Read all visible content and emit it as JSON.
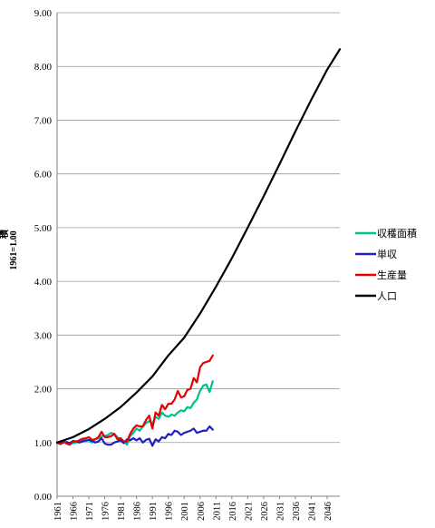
{
  "chart_data": {
    "type": "line",
    "ylabel": "1961=1.00",
    "ylabel_top_partial": "積",
    "ylim": [
      0,
      9
    ],
    "xlim": [
      1961,
      2050
    ],
    "y_ticks": [
      "0.00",
      "1.00",
      "2.00",
      "3.00",
      "4.00",
      "5.00",
      "6.00",
      "7.00",
      "8.00",
      "9.00"
    ],
    "x_ticks": [
      "1961",
      "1966",
      "1971",
      "1976",
      "1981",
      "1986",
      "1991",
      "1996",
      "2001",
      "2006",
      "2011",
      "2016",
      "2021",
      "2026",
      "2031",
      "2036",
      "2041",
      "2046"
    ],
    "grid": "horizontal",
    "legend_position": "right",
    "series": [
      {
        "name": "収穫面積",
        "color": "#00c08b",
        "x": [
          1961,
          1962,
          1963,
          1964,
          1965,
          1966,
          1967,
          1968,
          1969,
          1970,
          1971,
          1972,
          1973,
          1974,
          1975,
          1976,
          1977,
          1978,
          1979,
          1980,
          1981,
          1982,
          1983,
          1984,
          1985,
          1986,
          1987,
          1988,
          1989,
          1990,
          1991,
          1992,
          1993,
          1994,
          1995,
          1996,
          1997,
          1998,
          1999,
          2000,
          2001,
          2002,
          2003,
          2004,
          2005,
          2006,
          2007,
          2008,
          2009,
          2010
        ],
        "values": [
          1.0,
          1.0,
          1.02,
          0.98,
          0.97,
          0.99,
          1.0,
          1.04,
          1.05,
          1.03,
          1.04,
          1.0,
          1.06,
          1.08,
          1.12,
          1.12,
          1.14,
          1.18,
          1.16,
          1.1,
          1.06,
          1.02,
          0.96,
          1.12,
          1.18,
          1.26,
          1.22,
          1.3,
          1.36,
          1.4,
          1.34,
          1.48,
          1.44,
          1.56,
          1.5,
          1.48,
          1.52,
          1.5,
          1.56,
          1.6,
          1.58,
          1.66,
          1.64,
          1.74,
          1.8,
          1.96,
          2.06,
          2.08,
          1.94,
          2.14
        ]
      },
      {
        "name": "単収",
        "color": "#2020c0",
        "x": [
          1961,
          1962,
          1963,
          1964,
          1965,
          1966,
          1967,
          1968,
          1969,
          1970,
          1971,
          1972,
          1973,
          1974,
          1975,
          1976,
          1977,
          1978,
          1979,
          1980,
          1981,
          1982,
          1983,
          1984,
          1985,
          1986,
          1987,
          1988,
          1989,
          1990,
          1991,
          1992,
          1993,
          1994,
          1995,
          1996,
          1997,
          1998,
          1999,
          2000,
          2001,
          2002,
          2003,
          2004,
          2005,
          2006,
          2007,
          2008,
          2009,
          2010
        ],
        "values": [
          1.0,
          0.97,
          1.0,
          1.01,
          0.99,
          1.03,
          1.02,
          1.0,
          1.02,
          1.04,
          1.05,
          1.03,
          1.0,
          1.02,
          1.08,
          0.98,
          0.96,
          0.96,
          1.0,
          1.02,
          1.04,
          0.99,
          1.06,
          1.04,
          1.08,
          1.04,
          1.08,
          1.0,
          1.05,
          1.07,
          0.94,
          1.06,
          1.02,
          1.1,
          1.08,
          1.16,
          1.14,
          1.22,
          1.2,
          1.14,
          1.18,
          1.2,
          1.22,
          1.26,
          1.18,
          1.2,
          1.22,
          1.22,
          1.3,
          1.24
        ]
      },
      {
        "name": "生産量",
        "color": "#e60000",
        "x": [
          1961,
          1962,
          1963,
          1964,
          1965,
          1966,
          1967,
          1968,
          1969,
          1970,
          1971,
          1972,
          1973,
          1974,
          1975,
          1976,
          1977,
          1978,
          1979,
          1980,
          1981,
          1982,
          1983,
          1984,
          1985,
          1986,
          1987,
          1988,
          1989,
          1990,
          1991,
          1992,
          1993,
          1994,
          1995,
          1996,
          1997,
          1998,
          1999,
          2000,
          2001,
          2002,
          2003,
          2004,
          2005,
          2006,
          2007,
          2008,
          2009,
          2010
        ],
        "values": [
          1.0,
          0.98,
          1.02,
          0.98,
          0.96,
          1.02,
          1.02,
          1.04,
          1.07,
          1.08,
          1.1,
          1.05,
          1.06,
          1.1,
          1.2,
          1.1,
          1.1,
          1.12,
          1.16,
          1.06,
          1.08,
          1.02,
          1.02,
          1.16,
          1.26,
          1.32,
          1.3,
          1.3,
          1.42,
          1.5,
          1.26,
          1.56,
          1.5,
          1.7,
          1.62,
          1.72,
          1.72,
          1.8,
          1.96,
          1.84,
          1.86,
          1.98,
          2.0,
          2.2,
          2.12,
          2.4,
          2.48,
          2.5,
          2.52,
          2.62
        ]
      },
      {
        "name": "人口",
        "color": "#000000",
        "x": [
          1961,
          1966,
          1971,
          1976,
          1981,
          1986,
          1991,
          1996,
          2001,
          2006,
          2011,
          2016,
          2021,
          2026,
          2031,
          2036,
          2041,
          2046,
          2050
        ],
        "values": [
          1.0,
          1.1,
          1.25,
          1.44,
          1.66,
          1.93,
          2.23,
          2.62,
          2.95,
          3.4,
          3.9,
          4.43,
          5.0,
          5.58,
          6.18,
          6.79,
          7.38,
          7.94,
          8.32
        ]
      }
    ]
  }
}
